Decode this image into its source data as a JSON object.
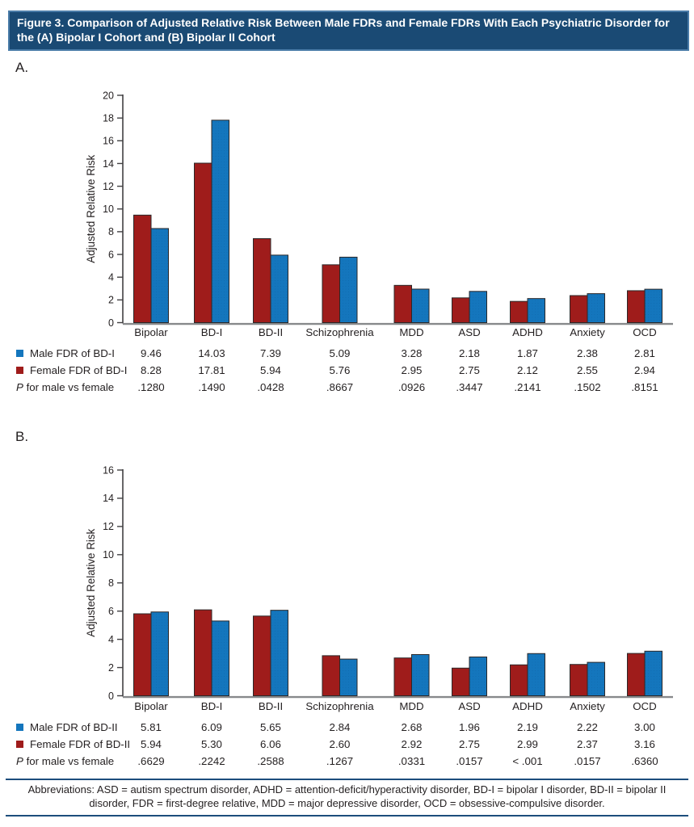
{
  "header": {
    "title": "Figure 3. Comparison of Adjusted Relative Risk Between Male FDRs and Female FDRs With Each Psychiatric Disorder for the (A) Bipolar I Cohort and (B) Bipolar II Cohort"
  },
  "colors": {
    "title_bg": "#1a4a74",
    "title_border": "#4a7ca8",
    "title_text": "#ffffff",
    "rule_blue": "#1c4d7c",
    "bar_red": "#9f1c1b",
    "bar_blue": "#1476bd",
    "bar_outline": "#2b2829",
    "axis_dark": "#414042",
    "axis_gray": "#87898b",
    "text": "#231f20"
  },
  "chart_data": [
    {
      "type": "bar",
      "panel_label": "A.",
      "ylabel": "Adjusted Relative Risk",
      "ylim": [
        0,
        20
      ],
      "ytick_step": 2,
      "grid": false,
      "legend_position": "table-left-below",
      "categories": [
        "Bipolar",
        "BD-I",
        "BD-II",
        "Schizophrenia",
        "MDD",
        "ASD",
        "ADHD",
        "Anxiety",
        "OCD"
      ],
      "series": [
        {
          "name": "Male FDR of BD-I",
          "legend_swatch_color": "#1476bd",
          "bar_fill_color": "#9f1c1b",
          "bar_position": "left",
          "values": [
            9.46,
            14.03,
            7.39,
            5.09,
            3.28,
            2.18,
            1.87,
            2.38,
            2.81
          ]
        },
        {
          "name": "Female FDR of BD-I",
          "legend_swatch_color": "#9f1c1b",
          "bar_fill_color": "#1476bd",
          "bar_position": "right",
          "values": [
            8.28,
            17.81,
            5.94,
            5.76,
            2.95,
            2.75,
            2.12,
            2.55,
            2.94
          ]
        }
      ],
      "p_row": {
        "label": "P for male vs female",
        "values": [
          ".1280",
          ".1490",
          ".0428",
          ".8667",
          ".0926",
          ".3447",
          ".2141",
          ".1502",
          ".8151"
        ]
      }
    },
    {
      "type": "bar",
      "panel_label": "B.",
      "ylabel": "Adjusted Relative Risk",
      "ylim": [
        0,
        16
      ],
      "ytick_step": 2,
      "grid": false,
      "legend_position": "table-left-below",
      "categories": [
        "Bipolar",
        "BD-I",
        "BD-II",
        "Schizophrenia",
        "MDD",
        "ASD",
        "ADHD",
        "Anxiety",
        "OCD"
      ],
      "series": [
        {
          "name": "Male FDR of BD-II",
          "legend_swatch_color": "#1476bd",
          "bar_fill_color": "#9f1c1b",
          "bar_position": "left",
          "values": [
            5.81,
            6.09,
            5.65,
            2.84,
            2.68,
            1.96,
            2.19,
            2.22,
            3.0
          ]
        },
        {
          "name": "Female FDR of BD-II",
          "legend_swatch_color": "#9f1c1b",
          "bar_fill_color": "#1476bd",
          "bar_position": "right",
          "values": [
            5.94,
            5.3,
            6.06,
            2.6,
            2.92,
            2.75,
            2.99,
            2.37,
            3.16
          ]
        }
      ],
      "p_row": {
        "label": "P for male vs female",
        "values": [
          ".6629",
          ".2242",
          ".2588",
          ".1267",
          ".0331",
          ".0157",
          "< .001",
          ".0157",
          ".6360"
        ]
      }
    }
  ],
  "footer": {
    "abbreviations": "Abbreviations: ASD = autism spectrum disorder, ADHD = attention-deficit/hyperactivity disorder, BD-I = bipolar I disorder, BD-II = bipolar II disorder, FDR = first-degree relative, MDD = major depressive disorder, OCD = obsessive-compulsive disorder."
  }
}
